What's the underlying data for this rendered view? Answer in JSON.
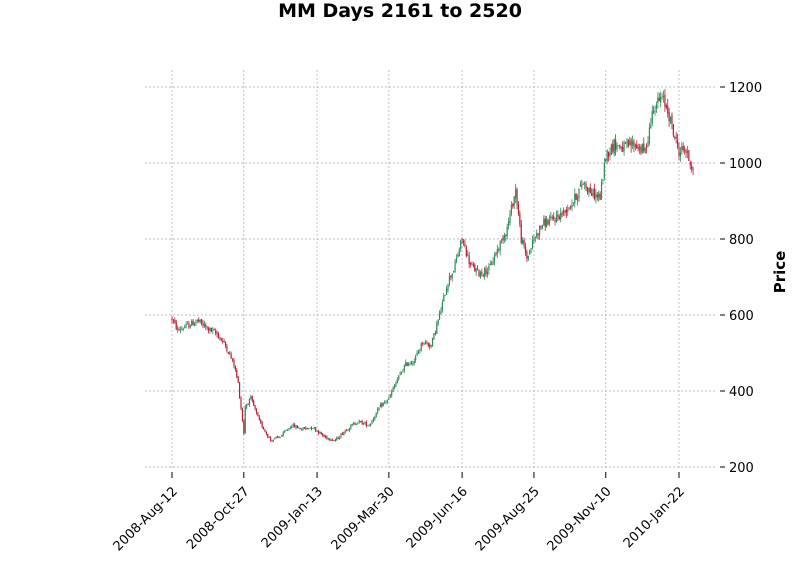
{
  "chart_data": {
    "type": "candlestick",
    "title": "MM Days 2161 to 2520",
    "xlabel": "",
    "ylabel": "Price",
    "x_tick_labels": [
      "2008-Aug-12",
      "2008-Oct-27",
      "2009-Jan-13",
      "2009-Mar-30",
      "2009-Jun-16",
      "2009-Aug-25",
      "2009-Nov-10",
      "2010-Jan-22"
    ],
    "x_tick_index": [
      0,
      51,
      103,
      154,
      206,
      257,
      308,
      360
    ],
    "y_ticks": [
      200,
      400,
      600,
      800,
      1000,
      1200
    ],
    "ylim": [
      190,
      1245
    ],
    "grid": true,
    "up_color": "#2e8b57",
    "down_color": "#b22234",
    "close_series_approx": {
      "index": [
        0,
        4,
        10,
        18,
        25,
        32,
        38,
        44,
        47,
        51,
        52,
        56,
        62,
        70,
        77,
        85,
        92,
        100,
        108,
        116,
        124,
        132,
        140,
        148,
        154,
        160,
        166,
        172,
        178,
        184,
        190,
        196,
        200,
        206,
        212,
        218,
        225,
        232,
        238,
        244,
        248,
        252,
        257,
        263,
        270,
        278,
        285,
        292,
        298,
        304,
        308,
        314,
        320,
        328,
        336,
        342,
        348,
        352,
        356,
        360,
        364,
        368,
        370
      ],
      "close": [
        590,
        560,
        570,
        585,
        565,
        550,
        520,
        470,
        420,
        290,
        360,
        380,
        320,
        270,
        280,
        310,
        300,
        305,
        280,
        270,
        300,
        320,
        310,
        360,
        380,
        430,
        470,
        480,
        530,
        520,
        600,
        690,
        720,
        800,
        730,
        710,
        720,
        780,
        830,
        930,
        800,
        750,
        800,
        840,
        850,
        870,
        900,
        950,
        920,
        910,
        1020,
        1050,
        1040,
        1050,
        1030,
        1150,
        1170,
        1140,
        1080,
        1030,
        1040,
        1000,
        990
      ]
    }
  }
}
